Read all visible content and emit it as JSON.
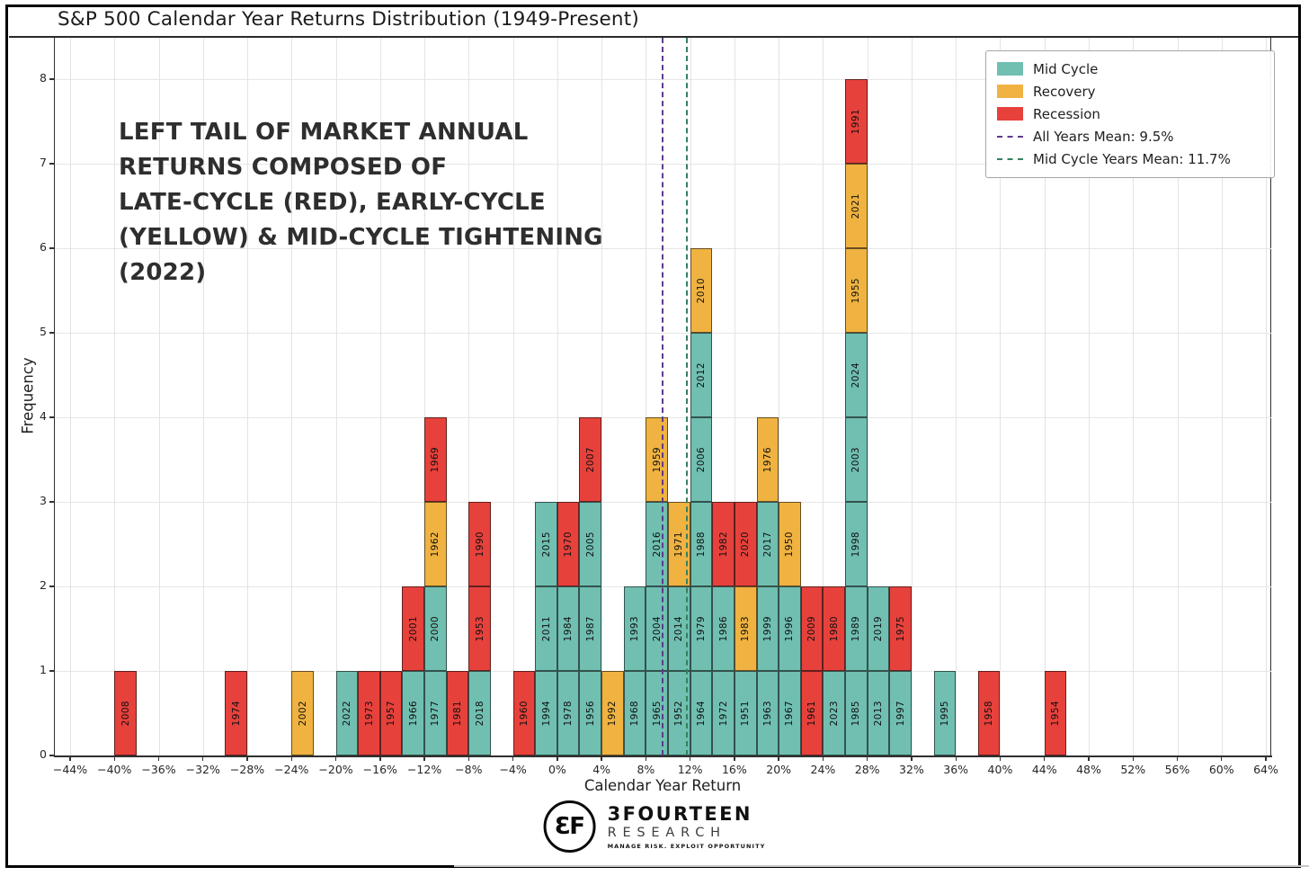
{
  "title": "S&P 500 Calendar Year Returns Distribution (1949-Present)",
  "annotation": "LEFT TAIL OF MARKET ANNUAL\nRETURNS COMPOSED OF\nLATE-CYCLE (RED), EARLY-CYCLE\n(YELLOW) & MID-CYCLE TIGHTENING\n(2022)",
  "footer": {
    "logo_monogram": "3F",
    "brand": "3FOURTEEN",
    "sub": "RESEARCH",
    "tagline": "MANAGE RISK. EXPLOIT OPPORTUNITY"
  },
  "chart_data": {
    "type": "bar",
    "variant": "stacked-histogram",
    "title": "S&P 500 Calendar Year Returns Distribution (1949-Present)",
    "xlabel": "Calendar Year Return",
    "ylabel": "Frequency",
    "grid": true,
    "legend_position": "upper right",
    "bin_width_pct": 2,
    "xlim_pct": [
      -46,
      66
    ],
    "ylim": [
      0,
      8.5
    ],
    "y_ticks": [
      0,
      1,
      2,
      3,
      4,
      5,
      6,
      7,
      8
    ],
    "x_ticks": [
      {
        "v": -44,
        "label": "−44%"
      },
      {
        "v": -40,
        "label": "−40%"
      },
      {
        "v": -36,
        "label": "−36%"
      },
      {
        "v": -32,
        "label": "−32%"
      },
      {
        "v": -28,
        "label": "−28%"
      },
      {
        "v": -24,
        "label": "−24%"
      },
      {
        "v": -20,
        "label": "−20%"
      },
      {
        "v": -16,
        "label": "−16%"
      },
      {
        "v": -12,
        "label": "−12%"
      },
      {
        "v": -8,
        "label": "−8%"
      },
      {
        "v": -4,
        "label": "−4%"
      },
      {
        "v": 0,
        "label": "0%"
      },
      {
        "v": 4,
        "label": "4%"
      },
      {
        "v": 8,
        "label": "8%"
      },
      {
        "v": 12,
        "label": "12%"
      },
      {
        "v": 16,
        "label": "16%"
      },
      {
        "v": 20,
        "label": "20%"
      },
      {
        "v": 24,
        "label": "24%"
      },
      {
        "v": 28,
        "label": "28%"
      },
      {
        "v": 32,
        "label": "32%"
      },
      {
        "v": 36,
        "label": "36%"
      },
      {
        "v": 40,
        "label": "40%"
      },
      {
        "v": 44,
        "label": "44%"
      },
      {
        "v": 48,
        "label": "48%"
      },
      {
        "v": 52,
        "label": "52%"
      },
      {
        "v": 56,
        "label": "56%"
      },
      {
        "v": 60,
        "label": "60%"
      },
      {
        "v": 64,
        "label": "64%"
      }
    ],
    "legend": [
      {
        "key": "mid",
        "label": "Mid Cycle",
        "color": "#70BFB1"
      },
      {
        "key": "recovery",
        "label": "Recovery",
        "color": "#F0B341"
      },
      {
        "key": "recession",
        "label": "Recession",
        "color": "#E7413C"
      }
    ],
    "mean_lines": [
      {
        "key": "all-years-mean",
        "label": "All Years Mean: 9.5%",
        "value_pct": 9.5,
        "color": "#5D3A8E",
        "style": "dashed"
      },
      {
        "key": "mid-cycle-years-mean",
        "label": "Mid Cycle Years Mean: 11.7%",
        "value_pct": 11.7,
        "color": "#35805F",
        "style": "dashed"
      }
    ],
    "bins": [
      {
        "start_pct": -40,
        "years": [
          {
            "y": "2008",
            "c": "recession"
          }
        ]
      },
      {
        "start_pct": -30,
        "years": [
          {
            "y": "1974",
            "c": "recession"
          }
        ]
      },
      {
        "start_pct": -24,
        "years": [
          {
            "y": "2002",
            "c": "recovery"
          }
        ]
      },
      {
        "start_pct": -20,
        "years": [
          {
            "y": "2022",
            "c": "mid"
          }
        ]
      },
      {
        "start_pct": -18,
        "years": [
          {
            "y": "1973",
            "c": "recession"
          }
        ]
      },
      {
        "start_pct": -16,
        "years": [
          {
            "y": "1957",
            "c": "recession"
          }
        ]
      },
      {
        "start_pct": -14,
        "years": [
          {
            "y": "1966",
            "c": "mid"
          },
          {
            "y": "2001",
            "c": "recession"
          }
        ]
      },
      {
        "start_pct": -12,
        "years": [
          {
            "y": "1977",
            "c": "mid"
          },
          {
            "y": "2000",
            "c": "mid"
          },
          {
            "y": "1962",
            "c": "recovery"
          },
          {
            "y": "1969",
            "c": "recession"
          }
        ]
      },
      {
        "start_pct": -10,
        "years": [
          {
            "y": "1981",
            "c": "recession"
          }
        ]
      },
      {
        "start_pct": -8,
        "years": [
          {
            "y": "2018",
            "c": "mid"
          },
          {
            "y": "1953",
            "c": "recession"
          },
          {
            "y": "1990",
            "c": "recession"
          }
        ]
      },
      {
        "start_pct": -4,
        "years": [
          {
            "y": "1960",
            "c": "recession"
          }
        ]
      },
      {
        "start_pct": -2,
        "years": [
          {
            "y": "1994",
            "c": "mid"
          },
          {
            "y": "2011",
            "c": "mid"
          },
          {
            "y": "2015",
            "c": "mid"
          }
        ]
      },
      {
        "start_pct": 0,
        "years": [
          {
            "y": "1978",
            "c": "mid"
          },
          {
            "y": "1984",
            "c": "mid"
          },
          {
            "y": "1970",
            "c": "recession"
          }
        ]
      },
      {
        "start_pct": 2,
        "years": [
          {
            "y": "1956",
            "c": "mid"
          },
          {
            "y": "1987",
            "c": "mid"
          },
          {
            "y": "2005",
            "c": "mid"
          },
          {
            "y": "2007",
            "c": "recession"
          }
        ]
      },
      {
        "start_pct": 4,
        "years": [
          {
            "y": "1992",
            "c": "recovery"
          }
        ]
      },
      {
        "start_pct": 6,
        "years": [
          {
            "y": "1968",
            "c": "mid"
          },
          {
            "y": "1993",
            "c": "mid"
          }
        ]
      },
      {
        "start_pct": 8,
        "years": [
          {
            "y": "1965",
            "c": "mid"
          },
          {
            "y": "2004",
            "c": "mid"
          },
          {
            "y": "2016",
            "c": "mid"
          },
          {
            "y": "1959",
            "c": "recovery"
          }
        ]
      },
      {
        "start_pct": 10,
        "years": [
          {
            "y": "1952",
            "c": "mid"
          },
          {
            "y": "2014",
            "c": "mid"
          },
          {
            "y": "1971",
            "c": "recovery"
          }
        ]
      },
      {
        "start_pct": 12,
        "years": [
          {
            "y": "1964",
            "c": "mid"
          },
          {
            "y": "1979",
            "c": "mid"
          },
          {
            "y": "1988",
            "c": "mid"
          },
          {
            "y": "2006",
            "c": "mid"
          },
          {
            "y": "2012",
            "c": "mid"
          },
          {
            "y": "2010",
            "c": "recovery"
          }
        ]
      },
      {
        "start_pct": 14,
        "years": [
          {
            "y": "1972",
            "c": "mid"
          },
          {
            "y": "1986",
            "c": "mid"
          },
          {
            "y": "1982",
            "c": "recession"
          }
        ]
      },
      {
        "start_pct": 16,
        "years": [
          {
            "y": "1951",
            "c": "mid"
          },
          {
            "y": "1983",
            "c": "recovery"
          },
          {
            "y": "2020",
            "c": "recession"
          }
        ]
      },
      {
        "start_pct": 18,
        "years": [
          {
            "y": "1963",
            "c": "mid"
          },
          {
            "y": "1999",
            "c": "mid"
          },
          {
            "y": "2017",
            "c": "mid"
          },
          {
            "y": "1976",
            "c": "recovery"
          }
        ]
      },
      {
        "start_pct": 20,
        "years": [
          {
            "y": "1967",
            "c": "mid"
          },
          {
            "y": "1996",
            "c": "mid"
          },
          {
            "y": "1950",
            "c": "recovery"
          }
        ]
      },
      {
        "start_pct": 22,
        "years": [
          {
            "y": "1961",
            "c": "recession"
          },
          {
            "y": "2009",
            "c": "recession"
          }
        ]
      },
      {
        "start_pct": 24,
        "years": [
          {
            "y": "2023",
            "c": "mid"
          },
          {
            "y": "1980",
            "c": "recession"
          }
        ]
      },
      {
        "start_pct": 26,
        "years": [
          {
            "y": "1985",
            "c": "mid"
          },
          {
            "y": "1989",
            "c": "mid"
          },
          {
            "y": "1998",
            "c": "mid"
          },
          {
            "y": "2003",
            "c": "mid"
          },
          {
            "y": "2024",
            "c": "mid"
          },
          {
            "y": "1955",
            "c": "recovery"
          },
          {
            "y": "2021",
            "c": "recovery"
          },
          {
            "y": "1991",
            "c": "recession"
          }
        ]
      },
      {
        "start_pct": 28,
        "years": [
          {
            "y": "2013",
            "c": "mid"
          },
          {
            "y": "2019",
            "c": "mid"
          }
        ]
      },
      {
        "start_pct": 30,
        "years": [
          {
            "y": "1997",
            "c": "mid"
          },
          {
            "y": "1975",
            "c": "recession"
          }
        ]
      },
      {
        "start_pct": 34,
        "years": [
          {
            "y": "1995",
            "c": "mid"
          }
        ]
      },
      {
        "start_pct": 38,
        "years": [
          {
            "y": "1958",
            "c": "recession"
          }
        ]
      },
      {
        "start_pct": 44,
        "years": [
          {
            "y": "1954",
            "c": "recession"
          }
        ]
      }
    ]
  }
}
